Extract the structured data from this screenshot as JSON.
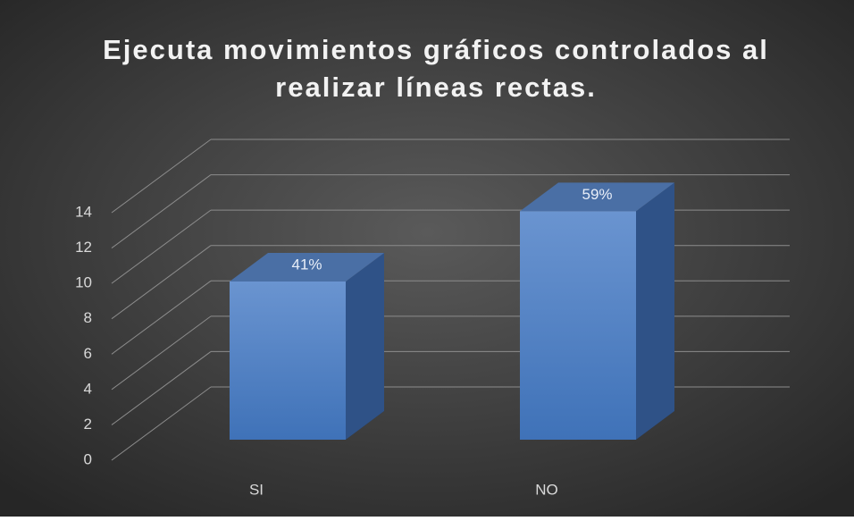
{
  "chart_data": {
    "type": "bar3d",
    "title": "Ejecuta movimientos gráficos controlados al realizar líneas rectas.",
    "categories": [
      "SI",
      "NO"
    ],
    "values": [
      9,
      13
    ],
    "value_labels": [
      "41%",
      "59%"
    ],
    "color": "#4a7cc4",
    "ylim": [
      0,
      14
    ],
    "yticks": [
      0,
      2,
      4,
      6,
      8,
      10,
      12,
      14
    ],
    "grid": true
  }
}
